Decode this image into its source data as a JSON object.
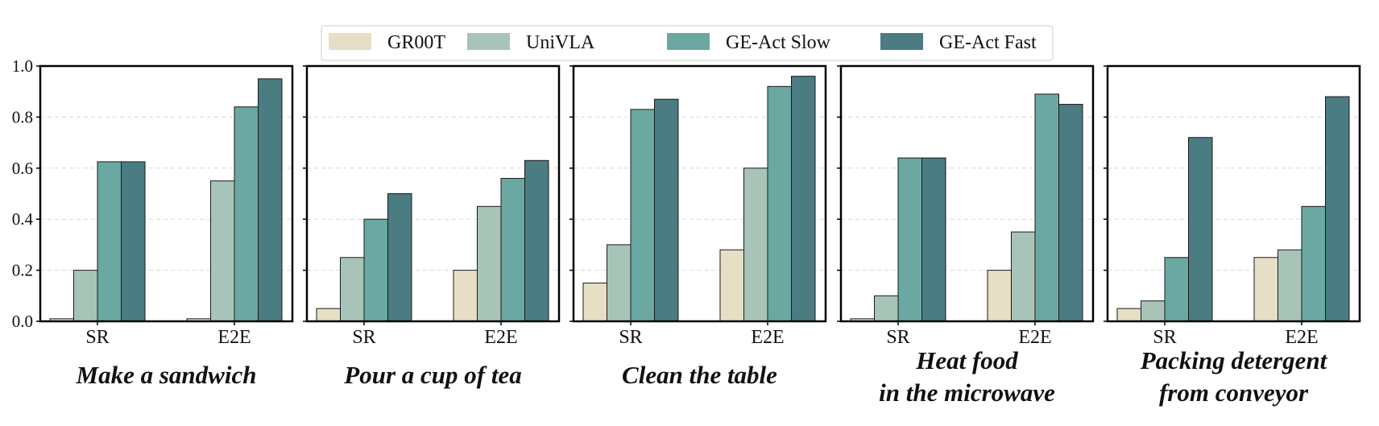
{
  "colors": {
    "GR00T": "#e6dfc6",
    "UniVLA": "#a8c4b8",
    "GE-Act Slow": "#6ba8a1",
    "GE-Act Fast": "#4a7c82",
    "frame": "#000000",
    "grid": "#d9d9d9"
  },
  "chart_data": {
    "type": "bar",
    "legend": [
      "GR00T",
      "UniVLA",
      "GE-Act Slow",
      "GE-Act Fast"
    ],
    "legend_position": "top-center",
    "categories": [
      "SR",
      "E2E"
    ],
    "ylim": [
      0,
      1.0
    ],
    "yticks": [
      "0.0",
      "0.2",
      "0.4",
      "0.6",
      "0.8",
      "1.0"
    ],
    "grid": "horizontal dashed",
    "panels": [
      {
        "title_lines": [
          "Make a sandwich"
        ],
        "series": [
          {
            "name": "GR00T",
            "values": [
              0.01,
              0.01
            ]
          },
          {
            "name": "UniVLA",
            "values": [
              0.2,
              0.55
            ]
          },
          {
            "name": "GE-Act Slow",
            "values": [
              0.625,
              0.84
            ]
          },
          {
            "name": "GE-Act Fast",
            "values": [
              0.625,
              0.95
            ]
          }
        ]
      },
      {
        "title_lines": [
          "Pour a cup of tea"
        ],
        "series": [
          {
            "name": "GR00T",
            "values": [
              0.05,
              0.2
            ]
          },
          {
            "name": "UniVLA",
            "values": [
              0.25,
              0.45
            ]
          },
          {
            "name": "GE-Act Slow",
            "values": [
              0.4,
              0.56
            ]
          },
          {
            "name": "GE-Act Fast",
            "values": [
              0.5,
              0.63
            ]
          }
        ]
      },
      {
        "title_lines": [
          "Clean the table"
        ],
        "series": [
          {
            "name": "GR00T",
            "values": [
              0.15,
              0.28
            ]
          },
          {
            "name": "UniVLA",
            "values": [
              0.3,
              0.6
            ]
          },
          {
            "name": "GE-Act Slow",
            "values": [
              0.83,
              0.92
            ]
          },
          {
            "name": "GE-Act Fast",
            "values": [
              0.87,
              0.96
            ]
          }
        ]
      },
      {
        "title_lines": [
          "Heat food",
          "in the microwave"
        ],
        "series": [
          {
            "name": "GR00T",
            "values": [
              0.01,
              0.2
            ]
          },
          {
            "name": "UniVLA",
            "values": [
              0.1,
              0.35
            ]
          },
          {
            "name": "GE-Act Slow",
            "values": [
              0.64,
              0.89
            ]
          },
          {
            "name": "GE-Act Fast",
            "values": [
              0.64,
              0.85
            ]
          }
        ]
      },
      {
        "title_lines": [
          "Packing detergent",
          "from conveyor"
        ],
        "series": [
          {
            "name": "GR00T",
            "values": [
              0.05,
              0.25
            ]
          },
          {
            "name": "UniVLA",
            "values": [
              0.08,
              0.28
            ]
          },
          {
            "name": "GE-Act Slow",
            "values": [
              0.25,
              0.45
            ]
          },
          {
            "name": "GE-Act Fast",
            "values": [
              0.72,
              0.88
            ]
          }
        ]
      }
    ]
  }
}
